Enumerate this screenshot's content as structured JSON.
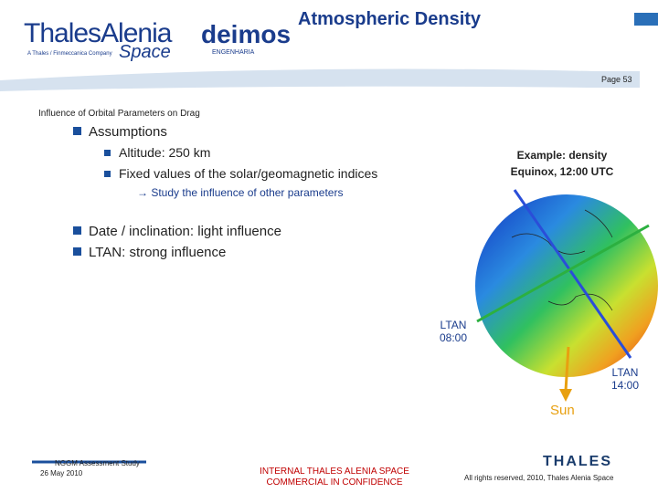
{
  "header": {
    "title": "Atmospheric Density",
    "page": "Page 53",
    "logos": {
      "thales_alenia": "ThalesAlenia",
      "space": "Space",
      "tagline": "A Thales / Finmeccanica Company",
      "deimos": "deimos",
      "deimos_sub": "ENGENHARIA"
    }
  },
  "section": "Influence of Orbital Parameters on Drag",
  "bullets": [
    {
      "text": "Assumptions",
      "sub": [
        "Altitude: 250 km",
        "Fixed values of the solar/geomagnetic indices"
      ],
      "note": "→ Study the influence of other parameters"
    },
    {
      "text": "Date / inclination: light influence"
    },
    {
      "text": "LTAN: strong influence"
    }
  ],
  "figure": {
    "caption": [
      "Example: density",
      "Equinox, 12:00 UTC"
    ],
    "ltan_a": [
      "LTAN",
      "08:00"
    ],
    "ltan_b": [
      "LTAN",
      "14:00"
    ],
    "sun": "Sun"
  },
  "footer": {
    "study": "NGGM Assessment Study",
    "date": "26 May 2010",
    "confidential": [
      "INTERNAL THALES ALENIA SPACE",
      "COMMERCIAL IN CONFIDENCE"
    ],
    "rights": "All rights reserved, 2010, Thales Alenia Space",
    "brand": "THALES"
  }
}
